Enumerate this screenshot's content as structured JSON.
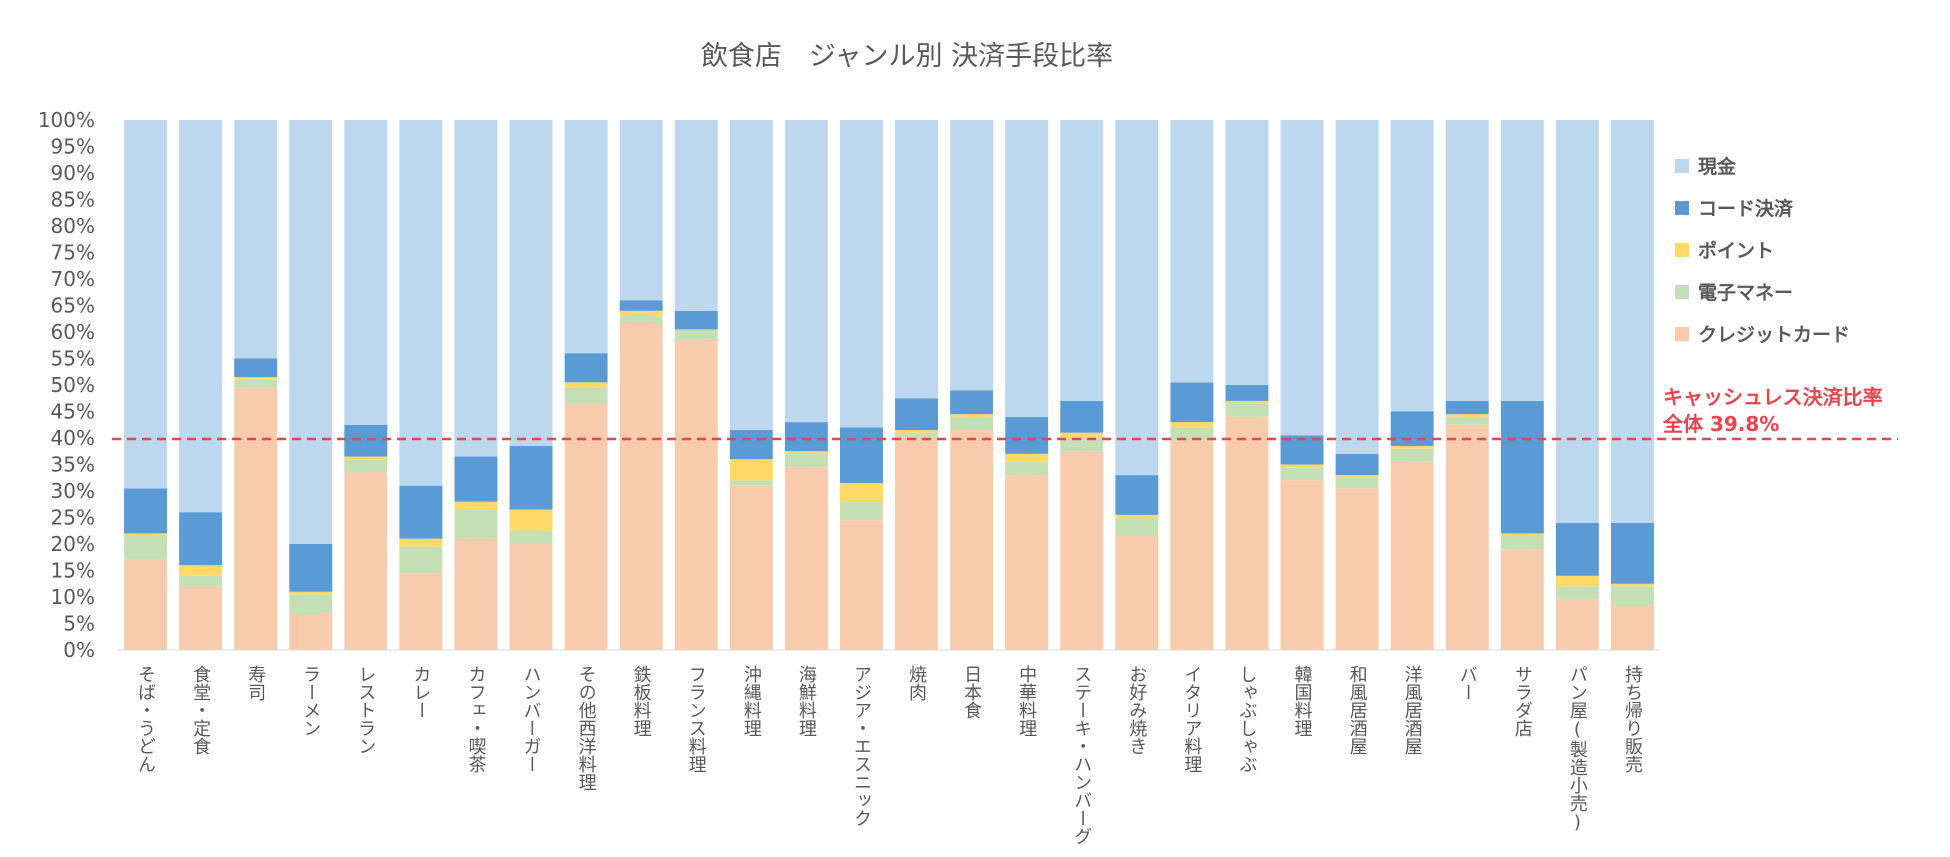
{
  "chart_data": {
    "type": "bar",
    "stacked": true,
    "title": "飲食店　ジャンル別 決済手段比率",
    "xlabel": "",
    "ylabel": "",
    "ylim": [
      0,
      100
    ],
    "yticks": [
      "0%",
      "5%",
      "10%",
      "15%",
      "20%",
      "25%",
      "30%",
      "35%",
      "40%",
      "45%",
      "50%",
      "55%",
      "60%",
      "65%",
      "70%",
      "75%",
      "80%",
      "85%",
      "90%",
      "95%",
      "100%"
    ],
    "legend_position": "right",
    "categories": [
      "そば・うどん",
      "食堂・定食",
      "寿司",
      "ラーメン",
      "レストラン",
      "カレー",
      "カフェ・喫茶",
      "ハンバーガー",
      "その他西洋料理",
      "鉄板料理",
      "フランス料理",
      "沖縄料理",
      "海鮮料理",
      "アジア・エスニック",
      "焼肉",
      "日本食",
      "中華料理",
      "ステーキ・ハンバーグ",
      "お好み焼き",
      "イタリア料理",
      "しゃぶしゃぶ",
      "韓国料理",
      "和風居酒屋",
      "洋風居酒屋",
      "バー",
      "サラダ店",
      "パン屋(製造小売)",
      "持ち帰り販売"
    ],
    "series": [
      {
        "name": "クレジットカード",
        "color": "#f8cbad",
        "values": [
          17,
          12,
          49.5,
          7,
          33.5,
          14.5,
          21,
          20,
          46.5,
          61.5,
          58.5,
          31,
          34.5,
          24.5,
          40,
          41.5,
          33,
          37.5,
          21.5,
          39.5,
          44,
          32,
          30.5,
          35.5,
          42.5,
          19,
          9.5,
          8.5
        ]
      },
      {
        "name": "電子マネー",
        "color": "#c5e0b4",
        "values": [
          4.5,
          2,
          1.5,
          3.5,
          2.5,
          5,
          5.5,
          2.5,
          3,
          1.5,
          2,
          1,
          2.5,
          3.5,
          1,
          2.5,
          2.5,
          2.5,
          3.5,
          2.5,
          2.5,
          2.5,
          2,
          2.5,
          1.5,
          2.5,
          2.5,
          3.5
        ]
      },
      {
        "name": "ポイント",
        "color": "#ffd966",
        "values": [
          0.5,
          2,
          0.5,
          0.5,
          0.5,
          1.5,
          1.5,
          4,
          1,
          1,
          0,
          4,
          0.5,
          3.5,
          0.5,
          0.5,
          1.5,
          1,
          0.5,
          1,
          0.5,
          0.5,
          0.5,
          0.5,
          0.5,
          0.5,
          2,
          0.5
        ]
      },
      {
        "name": "コード決済",
        "color": "#5b9bd5",
        "values": [
          8.5,
          10,
          3.5,
          9,
          6,
          10,
          8.5,
          12,
          5.5,
          2,
          3.5,
          5.5,
          5.5,
          10.5,
          6,
          4.5,
          7,
          6,
          7.5,
          7.5,
          3,
          5.5,
          4,
          6.5,
          2.5,
          25,
          10,
          11.5
        ]
      },
      {
        "name": "現金",
        "color": "#bdd7ee",
        "values": [
          69.5,
          74,
          45,
          80,
          57.5,
          69,
          63.5,
          61.5,
          44,
          34,
          36,
          58.5,
          57,
          58,
          52.5,
          51,
          56,
          53,
          67,
          49.5,
          50,
          59.5,
          63,
          55,
          53,
          53,
          76,
          76
        ]
      }
    ],
    "legend_order": [
      "現金",
      "コード決済",
      "ポイント",
      "電子マネー",
      "クレジットカード"
    ],
    "reference_line": {
      "value": 39.8,
      "color": "#e8444b",
      "label_line1": "キャッシュレス決済比率",
      "label_line2": "全体 39.8%"
    }
  }
}
